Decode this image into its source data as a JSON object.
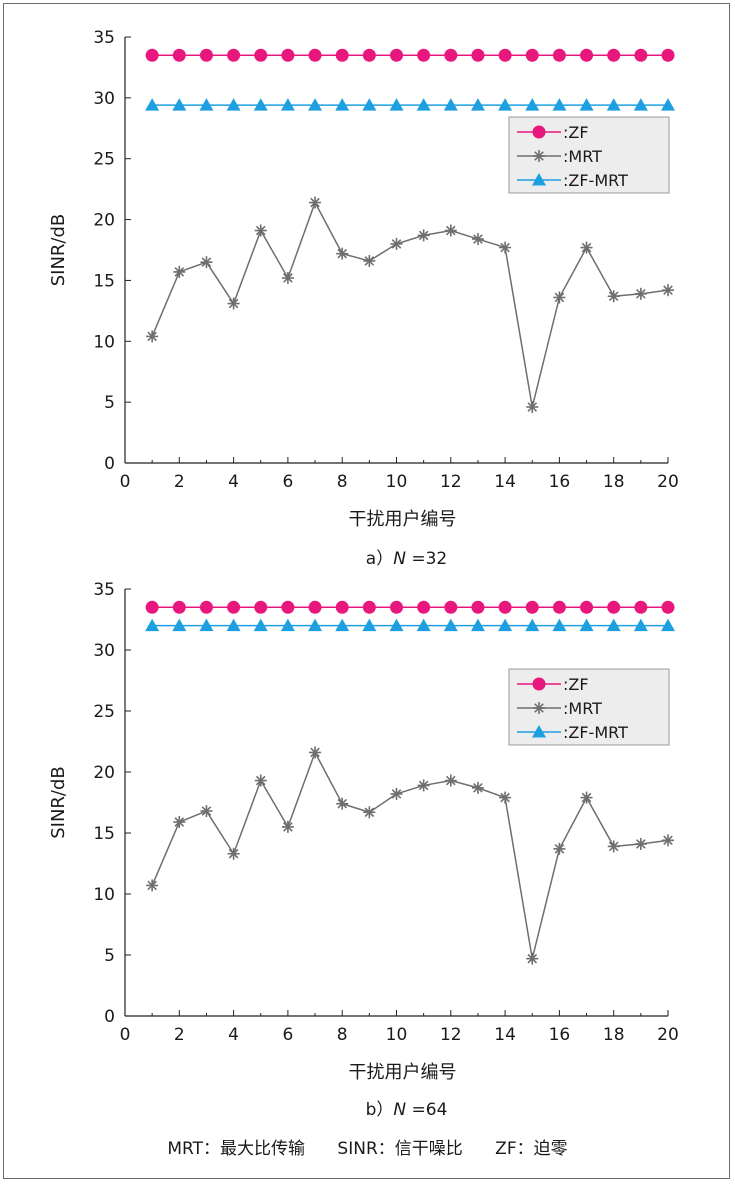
{
  "chart_data": [
    {
      "type": "line",
      "caption_prefix": "a）",
      "caption_var": "N",
      "caption_suffix": " =32",
      "xlabel": "干扰用户编号",
      "ylabel": "SINR/dB",
      "xlim": [
        0,
        20
      ],
      "ylim": [
        0,
        35
      ],
      "xticks": [
        "0",
        "2",
        "4",
        "6",
        "8",
        "10",
        "12",
        "14",
        "16",
        "18",
        "20"
      ],
      "yticks": [
        "0",
        "5",
        "10",
        "15",
        "20",
        "25",
        "30",
        "35"
      ],
      "grid": false,
      "legend_position": "top-right",
      "x": [
        1,
        2,
        3,
        4,
        5,
        6,
        7,
        8,
        9,
        10,
        11,
        12,
        13,
        14,
        15,
        16,
        17,
        18,
        19,
        20
      ],
      "series": [
        {
          "name": ":ZF",
          "color": "#e8177d",
          "marker": "circle",
          "values": [
            33.5,
            33.5,
            33.5,
            33.5,
            33.5,
            33.5,
            33.5,
            33.5,
            33.5,
            33.5,
            33.5,
            33.5,
            33.5,
            33.5,
            33.5,
            33.5,
            33.5,
            33.5,
            33.5,
            33.5
          ]
        },
        {
          "name": ":MRT",
          "color": "#6e6e6e",
          "marker": "asterisk",
          "values": [
            10.4,
            15.7,
            16.5,
            13.1,
            19.1,
            15.2,
            21.4,
            17.2,
            16.6,
            18.0,
            18.7,
            19.1,
            18.4,
            17.7,
            4.6,
            13.6,
            17.7,
            13.7,
            13.9,
            14.2
          ]
        },
        {
          "name": ":ZF-MRT",
          "color": "#1ea0e0",
          "marker": "triangle",
          "values": [
            29.4,
            29.4,
            29.4,
            29.4,
            29.4,
            29.4,
            29.4,
            29.4,
            29.4,
            29.4,
            29.4,
            29.4,
            29.4,
            29.4,
            29.4,
            29.4,
            29.4,
            29.4,
            29.4,
            29.4
          ]
        }
      ]
    },
    {
      "type": "line",
      "caption_prefix": "b）",
      "caption_var": "N",
      "caption_suffix": " =64",
      "xlabel": "干扰用户编号",
      "ylabel": "SINR/dB",
      "xlim": [
        0,
        20
      ],
      "ylim": [
        0,
        35
      ],
      "xticks": [
        "0",
        "2",
        "4",
        "6",
        "8",
        "10",
        "12",
        "14",
        "16",
        "18",
        "20"
      ],
      "yticks": [
        "0",
        "5",
        "10",
        "15",
        "20",
        "25",
        "30",
        "35"
      ],
      "grid": false,
      "legend_position": "top-right",
      "x": [
        1,
        2,
        3,
        4,
        5,
        6,
        7,
        8,
        9,
        10,
        11,
        12,
        13,
        14,
        15,
        16,
        17,
        18,
        19,
        20
      ],
      "series": [
        {
          "name": ":ZF",
          "color": "#e8177d",
          "marker": "circle",
          "values": [
            33.5,
            33.5,
            33.5,
            33.5,
            33.5,
            33.5,
            33.5,
            33.5,
            33.5,
            33.5,
            33.5,
            33.5,
            33.5,
            33.5,
            33.5,
            33.5,
            33.5,
            33.5,
            33.5,
            33.5
          ]
        },
        {
          "name": ":MRT",
          "color": "#6e6e6e",
          "marker": "asterisk",
          "values": [
            10.7,
            15.9,
            16.8,
            13.3,
            19.3,
            15.5,
            21.6,
            17.4,
            16.7,
            18.2,
            18.9,
            19.3,
            18.7,
            17.9,
            4.7,
            13.7,
            17.9,
            13.9,
            14.1,
            14.4
          ]
        },
        {
          "name": ":ZF-MRT",
          "color": "#1ea0e0",
          "marker": "triangle",
          "values": [
            32.0,
            32.0,
            32.0,
            32.0,
            32.0,
            32.0,
            32.0,
            32.0,
            32.0,
            32.0,
            32.0,
            32.0,
            32.0,
            32.0,
            32.0,
            32.0,
            32.0,
            32.0,
            32.0,
            32.0
          ]
        }
      ]
    }
  ],
  "footnote": "MRT：最大比传输      SINR：信干噪比      ZF：迫零"
}
